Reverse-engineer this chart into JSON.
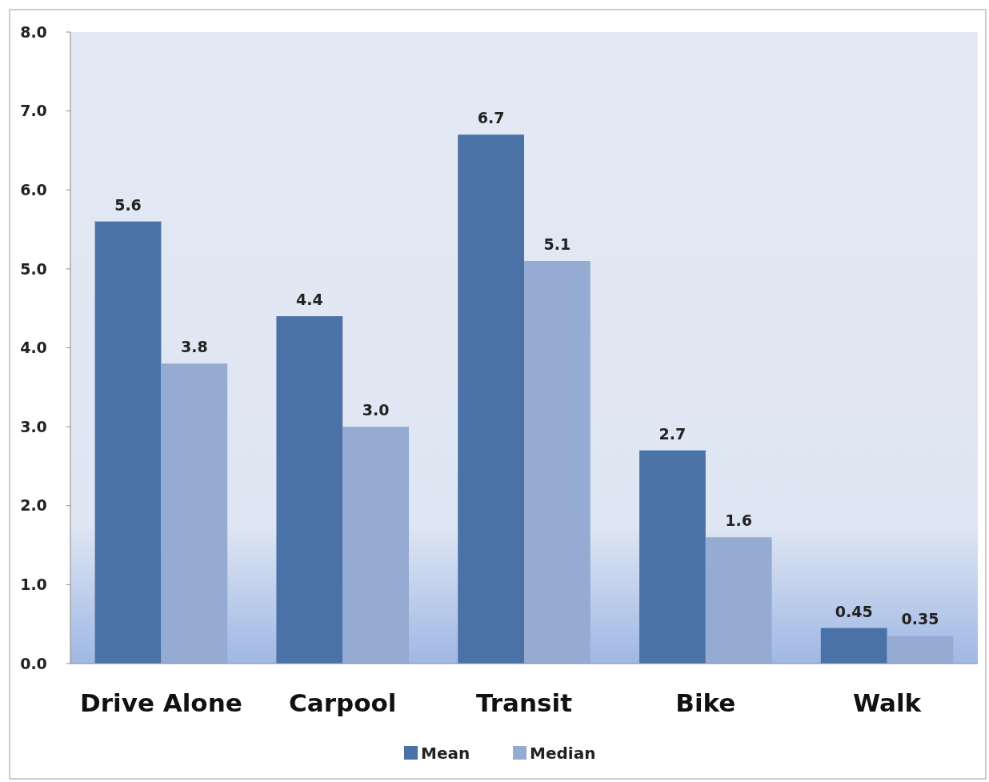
{
  "chart_data": {
    "type": "bar",
    "categories": [
      "Drive Alone",
      "Carpool",
      "Transit",
      "Bike",
      "Walk"
    ],
    "series": [
      {
        "name": "Mean",
        "color": "#4a72a6",
        "values": [
          5.6,
          4.4,
          6.7,
          2.7,
          0.45
        ],
        "value_labels": [
          "5.6",
          "4.4",
          "6.7",
          "2.7",
          "0.45"
        ]
      },
      {
        "name": "Median",
        "color": "#95abd2",
        "values": [
          3.8,
          3.0,
          5.1,
          1.6,
          0.35
        ],
        "value_labels": [
          "3.8",
          "3.0",
          "5.1",
          "1.6",
          "0.35"
        ]
      }
    ],
    "ylim": [
      0,
      8
    ],
    "yticks": [
      {
        "value": 0,
        "label": "0.0"
      },
      {
        "value": 1,
        "label": "1.0"
      },
      {
        "value": 2,
        "label": "2.0"
      },
      {
        "value": 3,
        "label": "3.0"
      },
      {
        "value": 4,
        "label": "4.0"
      },
      {
        "value": 5,
        "label": "5.0"
      },
      {
        "value": 6,
        "label": "6.0"
      },
      {
        "value": 7,
        "label": "7.0"
      },
      {
        "value": 8,
        "label": "8.0"
      }
    ],
    "grid": false,
    "legend": "bottom"
  }
}
